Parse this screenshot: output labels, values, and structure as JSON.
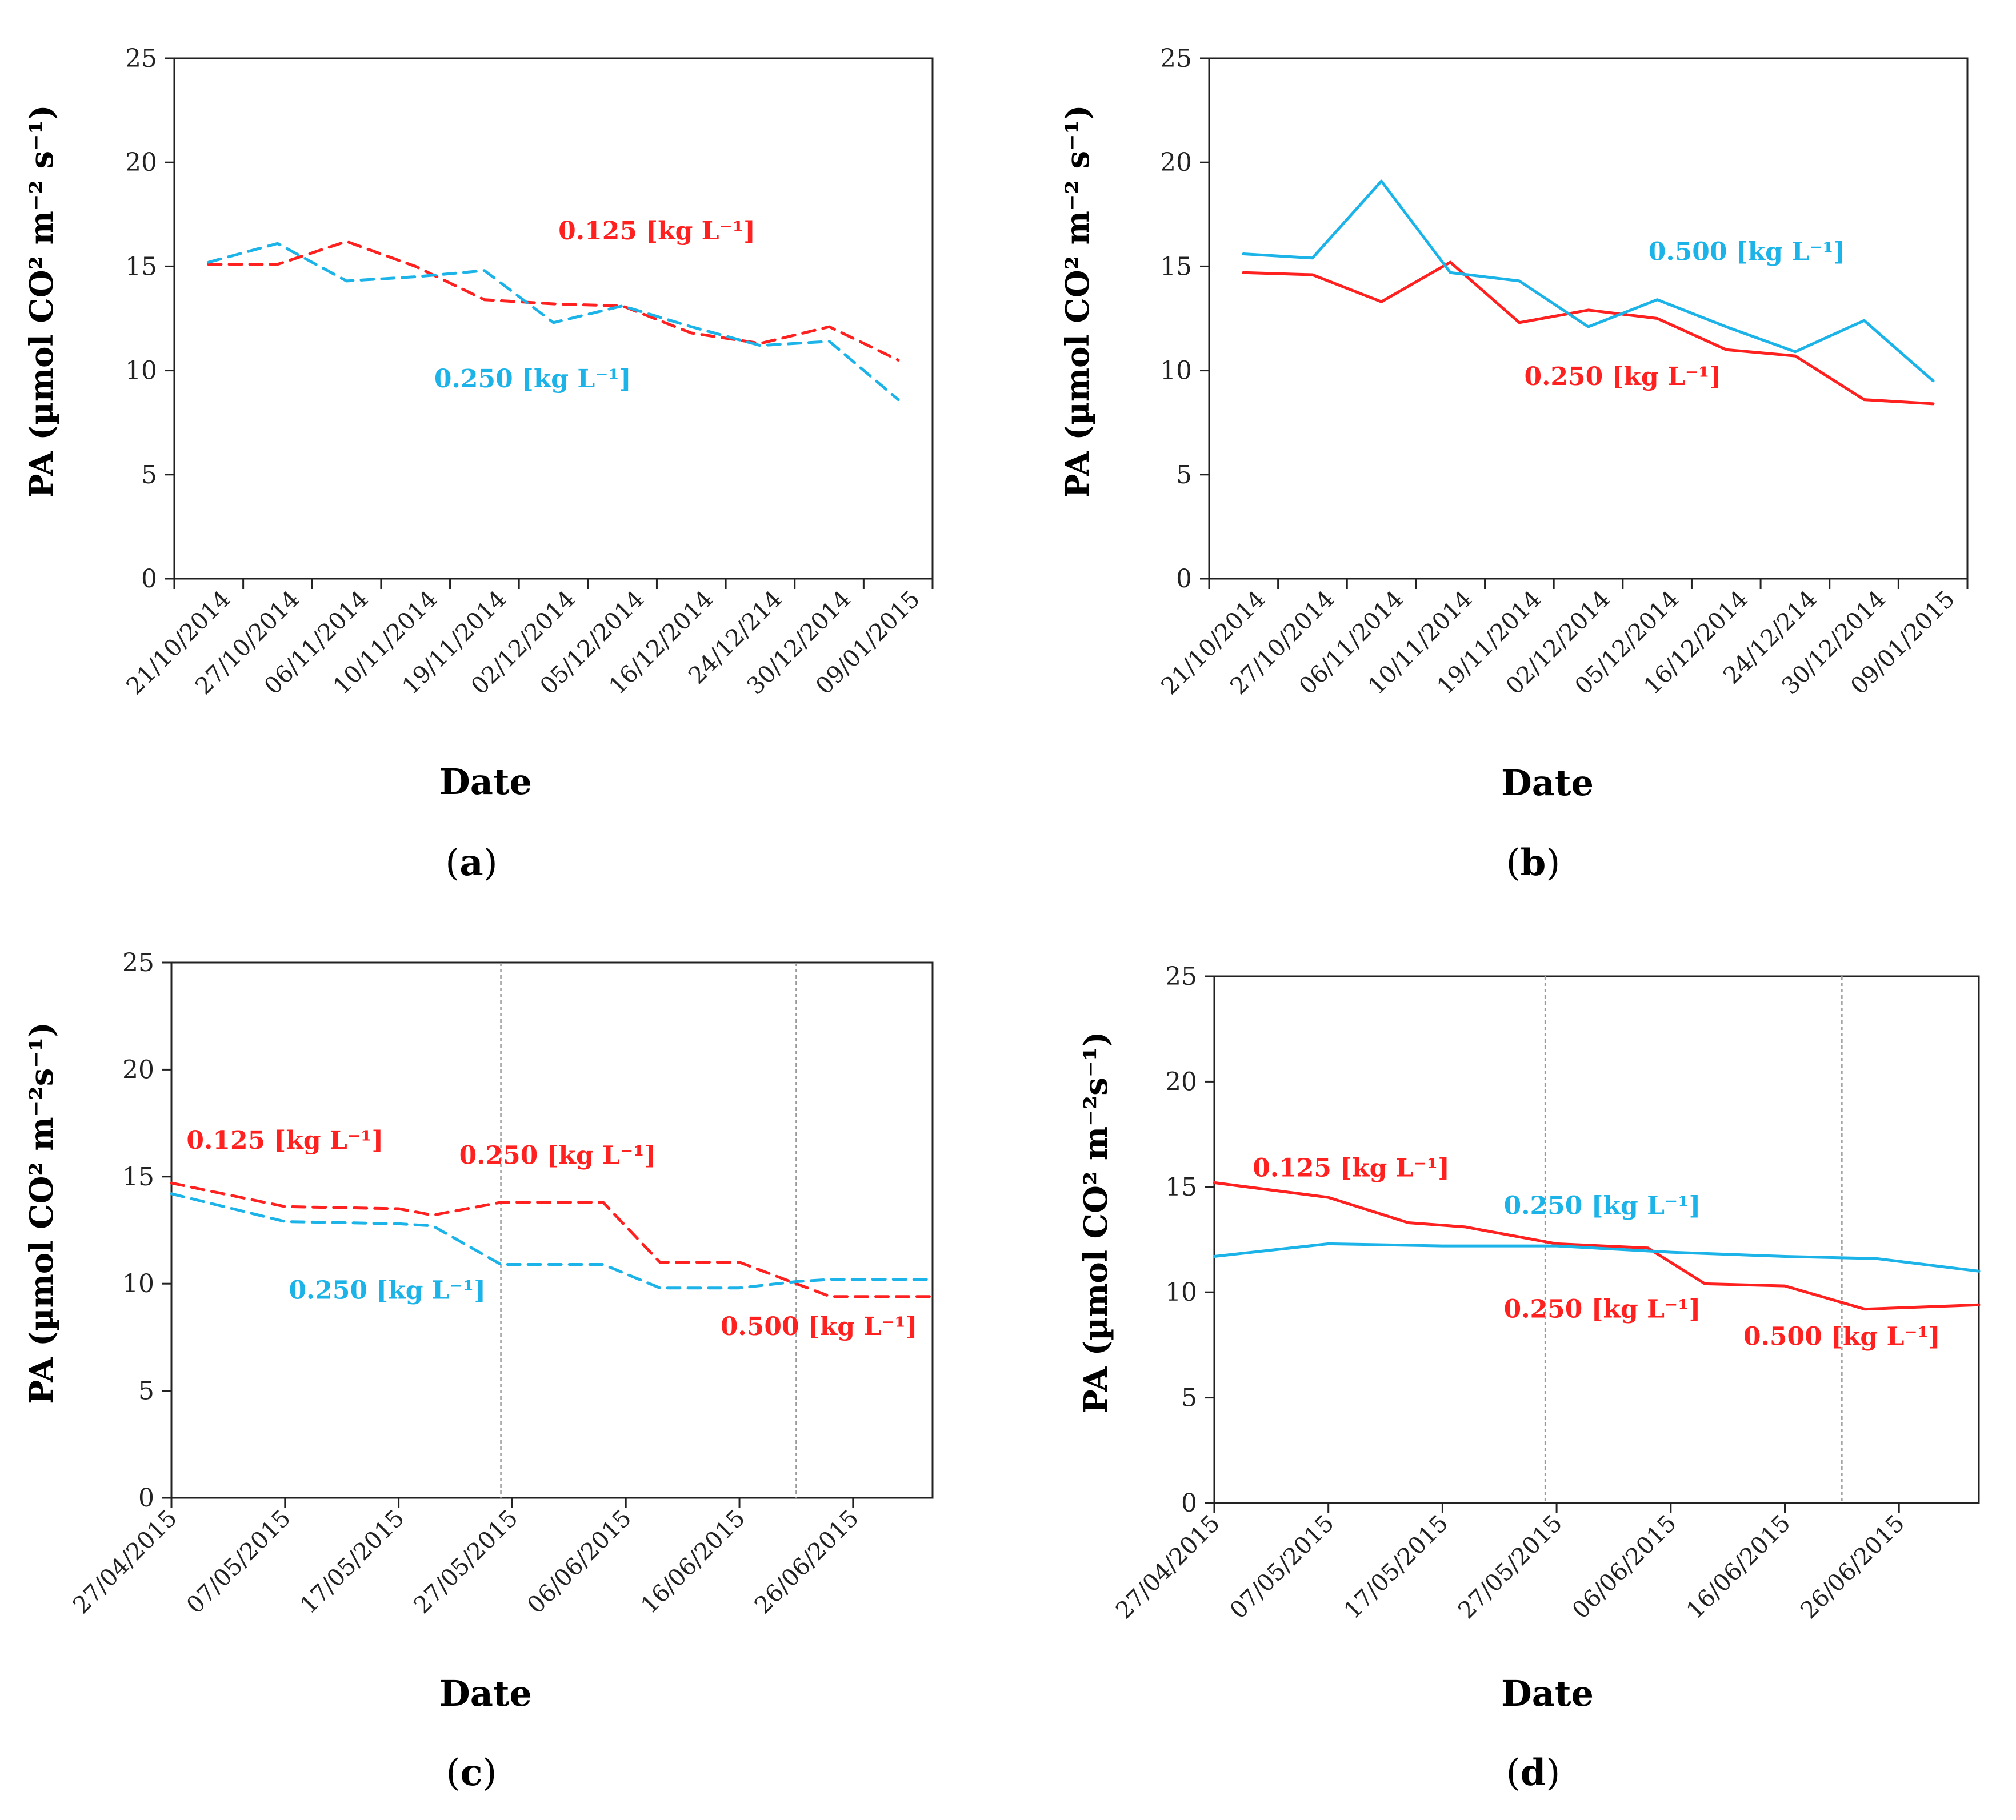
{
  "colors": {
    "red": "#ff2020",
    "blue": "#1cb4e8",
    "axis": "#222222",
    "divider": "#999999"
  },
  "chart_data": [
    {
      "id": "a",
      "type": "line",
      "caption_letter": "a",
      "xlabel": "Date",
      "ylabel": "PA (µmol CO² m⁻² s⁻¹)",
      "ylim": [
        0,
        25
      ],
      "yticks": [
        0,
        5,
        10,
        15,
        20,
        25
      ],
      "categories": [
        "21/10/2014",
        "27/10/2014",
        "06/11/2014",
        "10/11/2014",
        "19/11/2014",
        "02/12/2014",
        "05/12/2014",
        "16/12/2014",
        "24/12/214",
        "30/12/2014",
        "09/01/2015"
      ],
      "vlines": [],
      "series": [
        {
          "name": "0.125 [kg L⁻¹]",
          "color": "red",
          "dash": true,
          "x": [
            0,
            1,
            2,
            3,
            4,
            5,
            6,
            7,
            8,
            9,
            10
          ],
          "values": [
            15.1,
            15.1,
            16.2,
            15.0,
            13.4,
            13.2,
            13.1,
            11.8,
            11.3,
            12.1,
            10.5
          ]
        },
        {
          "name": "0.250 [kg L⁻¹]",
          "color": "blue",
          "dash": true,
          "x": [
            0,
            1,
            2,
            3,
            4,
            5,
            6,
            7,
            8,
            9,
            10
          ],
          "values": [
            15.2,
            16.1,
            14.3,
            14.5,
            14.8,
            12.3,
            13.1,
            12.1,
            11.2,
            11.4,
            8.6
          ]
        }
      ],
      "annotations": [
        {
          "text": "0.125 [kg L⁻¹]",
          "color": "red",
          "x": 6.5,
          "y": 16.3
        },
        {
          "text": "0.250 [kg L⁻¹]",
          "color": "blue",
          "x": 4.7,
          "y": 9.2
        }
      ]
    },
    {
      "id": "b",
      "type": "line",
      "caption_letter": "b",
      "xlabel": "Date",
      "ylabel": "PA (µmol CO² m⁻² s⁻¹)",
      "ylim": [
        0,
        25
      ],
      "yticks": [
        0,
        5,
        10,
        15,
        20,
        25
      ],
      "categories": [
        "21/10/2014",
        "27/10/2014",
        "06/11/2014",
        "10/11/2014",
        "19/11/2014",
        "02/12/2014",
        "05/12/2014",
        "16/12/2014",
        "24/12/214",
        "30/12/2014",
        "09/01/2015"
      ],
      "vlines": [],
      "series": [
        {
          "name": "0.250 [kg L⁻¹]",
          "color": "red",
          "dash": false,
          "x": [
            0,
            1,
            2,
            3,
            4,
            5,
            6,
            7,
            8,
            9,
            10
          ],
          "values": [
            14.7,
            14.6,
            13.3,
            15.2,
            12.3,
            12.9,
            12.5,
            11.0,
            10.7,
            8.6,
            8.4
          ]
        },
        {
          "name": "0.500 [kg L⁻¹]",
          "color": "blue",
          "dash": false,
          "x": [
            0,
            1,
            2,
            3,
            4,
            5,
            6,
            7,
            8,
            9,
            10
          ],
          "values": [
            15.6,
            15.4,
            19.1,
            14.7,
            14.3,
            12.1,
            13.4,
            12.1,
            10.9,
            12.4,
            9.5
          ]
        }
      ],
      "annotations": [
        {
          "text": "0.500 [kg L⁻¹]",
          "color": "blue",
          "x": 7.3,
          "y": 15.3
        },
        {
          "text": "0.250 [kg L⁻¹]",
          "color": "red",
          "x": 5.5,
          "y": 9.3
        }
      ]
    },
    {
      "id": "c",
      "type": "line",
      "caption_letter": "c",
      "xlabel": "Date",
      "ylabel": "PA (µmol CO² m⁻²s⁻¹)",
      "ylim": [
        0,
        25
      ],
      "yticks": [
        0,
        5,
        10,
        15,
        20,
        25
      ],
      "categories": [
        "27/04/2015",
        "07/05/2015",
        "17/05/2015",
        "27/05/2015",
        "06/06/2015",
        "16/06/2015",
        "26/06/2015"
      ],
      "xmax": 6.7,
      "vlines": [
        2.9,
        5.5
      ],
      "series": [
        {
          "name": "0.125/0.250/0.500 [kg L⁻¹]",
          "color": "red",
          "dash": true,
          "x": [
            0,
            1.0,
            2.0,
            2.3,
            2.9,
            3.8,
            4.3,
            5.0,
            5.5,
            5.8,
            6.7
          ],
          "values": [
            14.7,
            13.6,
            13.5,
            13.2,
            13.8,
            13.8,
            11.0,
            11.0,
            10.0,
            9.4,
            9.4
          ]
        },
        {
          "name": "0.250 [kg L⁻¹]",
          "color": "blue",
          "dash": true,
          "x": [
            0,
            1.0,
            2.0,
            2.3,
            2.9,
            3.8,
            4.3,
            5.0,
            5.5,
            5.8,
            6.7
          ],
          "values": [
            14.2,
            12.9,
            12.8,
            12.7,
            10.9,
            10.9,
            9.8,
            9.8,
            10.1,
            10.2,
            10.2
          ]
        }
      ],
      "annotations": [
        {
          "text": "0.125 [kg L⁻¹]",
          "color": "red",
          "x": 1.0,
          "y": 16.3
        },
        {
          "text": "0.250 [kg L⁻¹]",
          "color": "red",
          "x": 3.4,
          "y": 15.6
        },
        {
          "text": "0.250 [kg L⁻¹]",
          "color": "blue",
          "x": 1.9,
          "y": 9.3
        },
        {
          "text": "0.500 [kg L⁻¹]",
          "color": "red",
          "x": 5.7,
          "y": 7.6
        }
      ]
    },
    {
      "id": "d",
      "type": "line",
      "caption_letter": "d",
      "xlabel": "Date",
      "ylabel": "PA (µmol CO² m⁻²s⁻¹)",
      "ylim": [
        0,
        25
      ],
      "yticks": [
        0,
        5,
        10,
        15,
        20,
        25
      ],
      "categories": [
        "27/04/2015",
        "07/05/2015",
        "17/05/2015",
        "27/05/2015",
        "06/06/2015",
        "16/06/2015",
        "26/06/2015"
      ],
      "xmax": 6.7,
      "vlines": [
        2.9,
        5.5
      ],
      "series": [
        {
          "name": "0.125/0.250/0.500 [kg L⁻¹]",
          "color": "red",
          "dash": false,
          "x": [
            0,
            1.0,
            1.7,
            2.2,
            3.0,
            3.8,
            4.3,
            5.0,
            5.7,
            6.7
          ],
          "values": [
            15.2,
            14.5,
            13.3,
            13.1,
            12.3,
            12.1,
            10.4,
            10.3,
            9.2,
            9.4
          ]
        },
        {
          "name": "0.250 [kg L⁻¹]",
          "color": "blue",
          "dash": false,
          "x": [
            0,
            1.0,
            2.0,
            3.0,
            4.0,
            5.0,
            5.8,
            6.7
          ],
          "values": [
            11.7,
            12.3,
            12.2,
            12.2,
            11.9,
            11.7,
            11.6,
            11.0
          ]
        }
      ],
      "annotations": [
        {
          "text": "0.125 [kg L⁻¹]",
          "color": "red",
          "x": 1.2,
          "y": 15.5
        },
        {
          "text": "0.250 [kg L⁻¹]",
          "color": "blue",
          "x": 3.4,
          "y": 13.7
        },
        {
          "text": "0.250 [kg L⁻¹]",
          "color": "red",
          "x": 3.4,
          "y": 8.8
        },
        {
          "text": "0.500 [kg L⁻¹]",
          "color": "red",
          "x": 5.5,
          "y": 7.5
        }
      ]
    }
  ]
}
